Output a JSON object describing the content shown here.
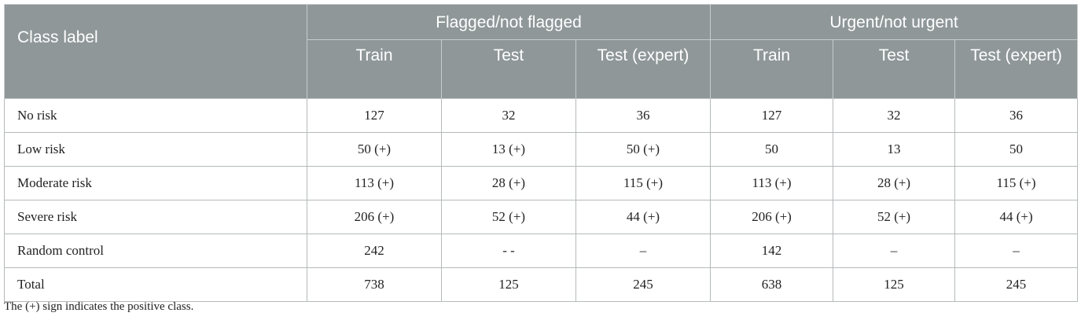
{
  "table": {
    "class_label": "Class label",
    "groups": [
      "Flagged/not flagged",
      "Urgent/not urgent"
    ],
    "subheaders": [
      [
        "Train",
        "Test",
        "Test (expert)"
      ],
      [
        "Train",
        "Test",
        "Test (expert)"
      ]
    ],
    "rows": [
      [
        "No risk",
        "127",
        "32",
        "36",
        "127",
        "32",
        "36"
      ],
      [
        "Low risk",
        "50 (+)",
        "13 (+)",
        "50 (+)",
        "50",
        "13",
        "50"
      ],
      [
        "Moderate risk",
        "113 (+)",
        "28 (+)",
        "115 (+)",
        "113 (+)",
        "28 (+)",
        "115 (+)"
      ],
      [
        "Severe risk",
        "206 (+)",
        "52 (+)",
        "44 (+)",
        "206 (+)",
        "52 (+)",
        "44 (+)"
      ],
      [
        "Random control",
        "242",
        "- -",
        "–",
        "142",
        "–",
        "–"
      ],
      [
        "Total",
        "738",
        "125",
        "245",
        "638",
        "125",
        "245"
      ]
    ]
  },
  "footnote": "The (+) sign indicates the positive class."
}
